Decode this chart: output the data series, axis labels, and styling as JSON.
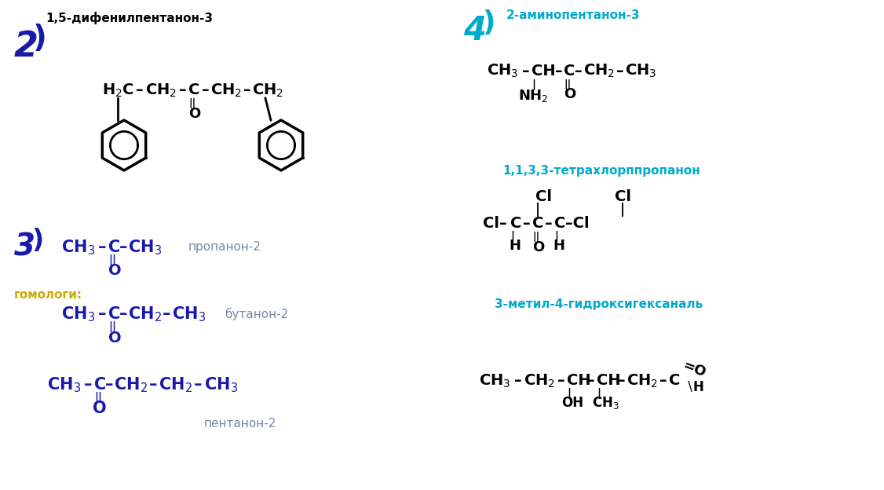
{
  "bg_color": "#ffffff",
  "blue_dark": "#1a1aaa",
  "blue_light": "#00aacc",
  "black": "#000000",
  "yellow": "#ccaa00",
  "gray_blue": "#7788aa",
  "item2_label": "2)",
  "item2_title": "1,5-дифенилпентанон-3",
  "item2_formula": "H₂C–CH₂–C–CH₂–CH₂",
  "item2_carbonyl": "||",
  "item2_o": "O",
  "item3_label": "3)",
  "item3_formula_propanon": "CH₃–C–CH₃",
  "item3_label_propanon": "пропанон-2",
  "item3_gomologi": "гомологи:",
  "item3_formula_butanon": "CH₃–C–CH₂–CH₃",
  "item3_label_butanon": "бутанон-2",
  "item3_formula_pentanon": "CH₃–C–CH₂–CH₂–CH₃",
  "item3_label_pentanon": "пентанон-2",
  "item4_label": "4)",
  "item4_title": "2-аминопентанон-3",
  "item4_formula": "CH₃–CH–C–CH₂–CH₃",
  "item4_nh2": "NH₂",
  "item4_o": "O",
  "item5_title": "1,1,3,3-тетрахлорппропанон",
  "item5_formula": "Cl–C–C–C–Cl",
  "item5_cl1": "Cl",
  "item5_cl2": "Cl",
  "item5_h1": "H",
  "item5_o": "O",
  "item5_h2": "H",
  "item6_title": "3-метил-4-гидроксигексаналь",
  "item6_formula": "CH₃–CH₂–CH–CH–CH₂–C",
  "item6_oh": "OH",
  "item6_ch3": "CH₃",
  "item6_cho": "=O"
}
